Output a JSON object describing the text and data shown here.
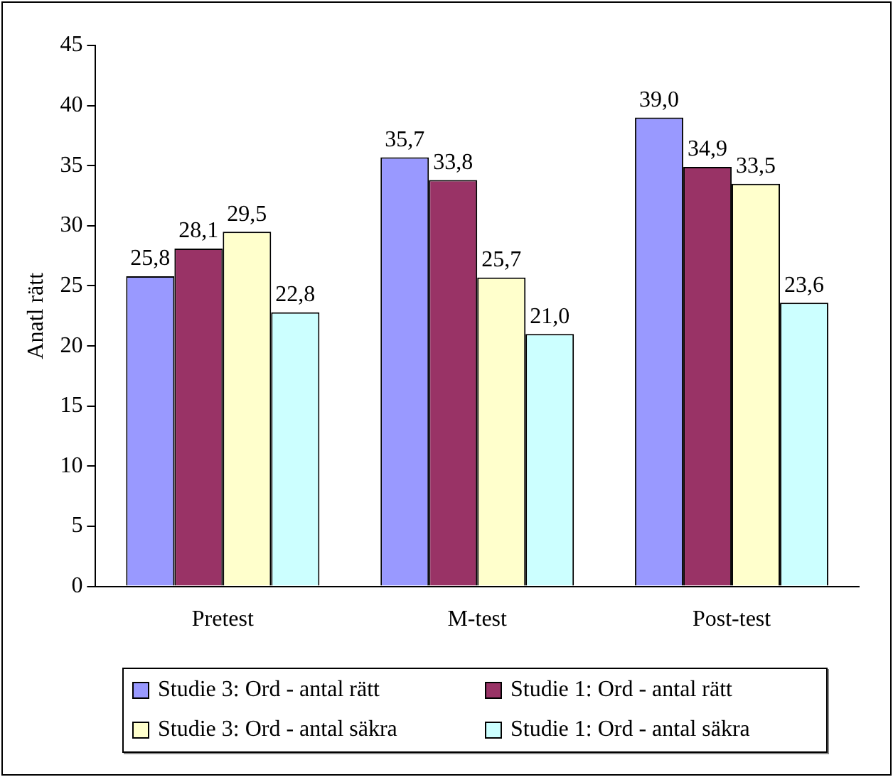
{
  "chart_data": {
    "type": "bar",
    "ylabel": "Anatl rätt",
    "categories": [
      "Pretest",
      "M-test",
      "Post-test"
    ],
    "series": [
      {
        "name": "Studie 3: Ord - antal rätt",
        "color": "#9999ff",
        "values": [
          25.8,
          35.7,
          39.0
        ],
        "value_labels": [
          "25,8",
          "35,7",
          "39,0"
        ]
      },
      {
        "name": "Studie 1: Ord - antal rätt",
        "color": "#993366",
        "values": [
          28.1,
          33.8,
          34.9
        ],
        "value_labels": [
          "28,1",
          "33,8",
          "34,9"
        ]
      },
      {
        "name": "Studie 3: Ord - antal säkra",
        "color": "#ffffcc",
        "values": [
          29.5,
          25.7,
          33.5
        ],
        "value_labels": [
          "29,5",
          "25,7",
          "33,5"
        ]
      },
      {
        "name": "Studie 1: Ord - antal säkra",
        "color": "#ccffff",
        "values": [
          22.8,
          21.0,
          23.6
        ],
        "value_labels": [
          "22,8",
          "21,0",
          "23,6"
        ]
      }
    ],
    "ylim": [
      0,
      45
    ],
    "yticks": [
      0,
      5,
      10,
      15,
      20,
      25,
      30,
      35,
      40,
      45
    ],
    "grid": false,
    "legend": "bottom"
  }
}
